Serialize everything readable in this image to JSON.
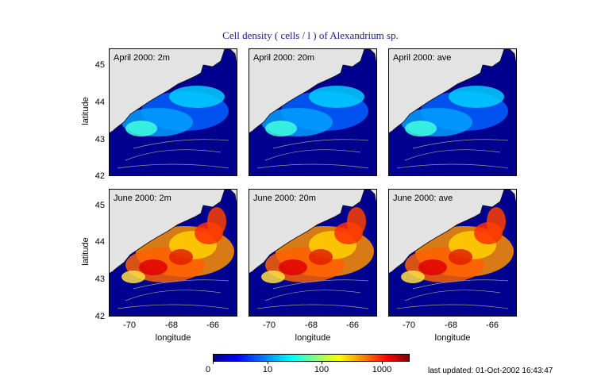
{
  "title": "Cell density ( cells / l ) of Alexandrium sp.",
  "panels": [
    {
      "label": "April 2000: 2m",
      "level": "low"
    },
    {
      "label": "April 2000: 20m",
      "level": "low"
    },
    {
      "label": "April 2000: ave",
      "level": "low"
    },
    {
      "label": "June 2000: 2m",
      "level": "high"
    },
    {
      "label": "June 2000: 20m",
      "level": "high"
    },
    {
      "label": "June 2000: ave",
      "level": "high"
    }
  ],
  "axes": {
    "ylabel": "latitude",
    "xlabel": "longitude",
    "yticks": [
      "45",
      "44",
      "43",
      "42"
    ],
    "xticks": [
      "-70",
      "-68",
      "-66"
    ]
  },
  "colorbar": {
    "ticks": [
      "0",
      "10",
      "100",
      "1000"
    ]
  },
  "last_updated": "last updated: 01-Oct-2002 16:43:47",
  "colors": {
    "land": "#e3e3e3",
    "ocean": "#00008f",
    "title": "#1a1a8c"
  }
}
